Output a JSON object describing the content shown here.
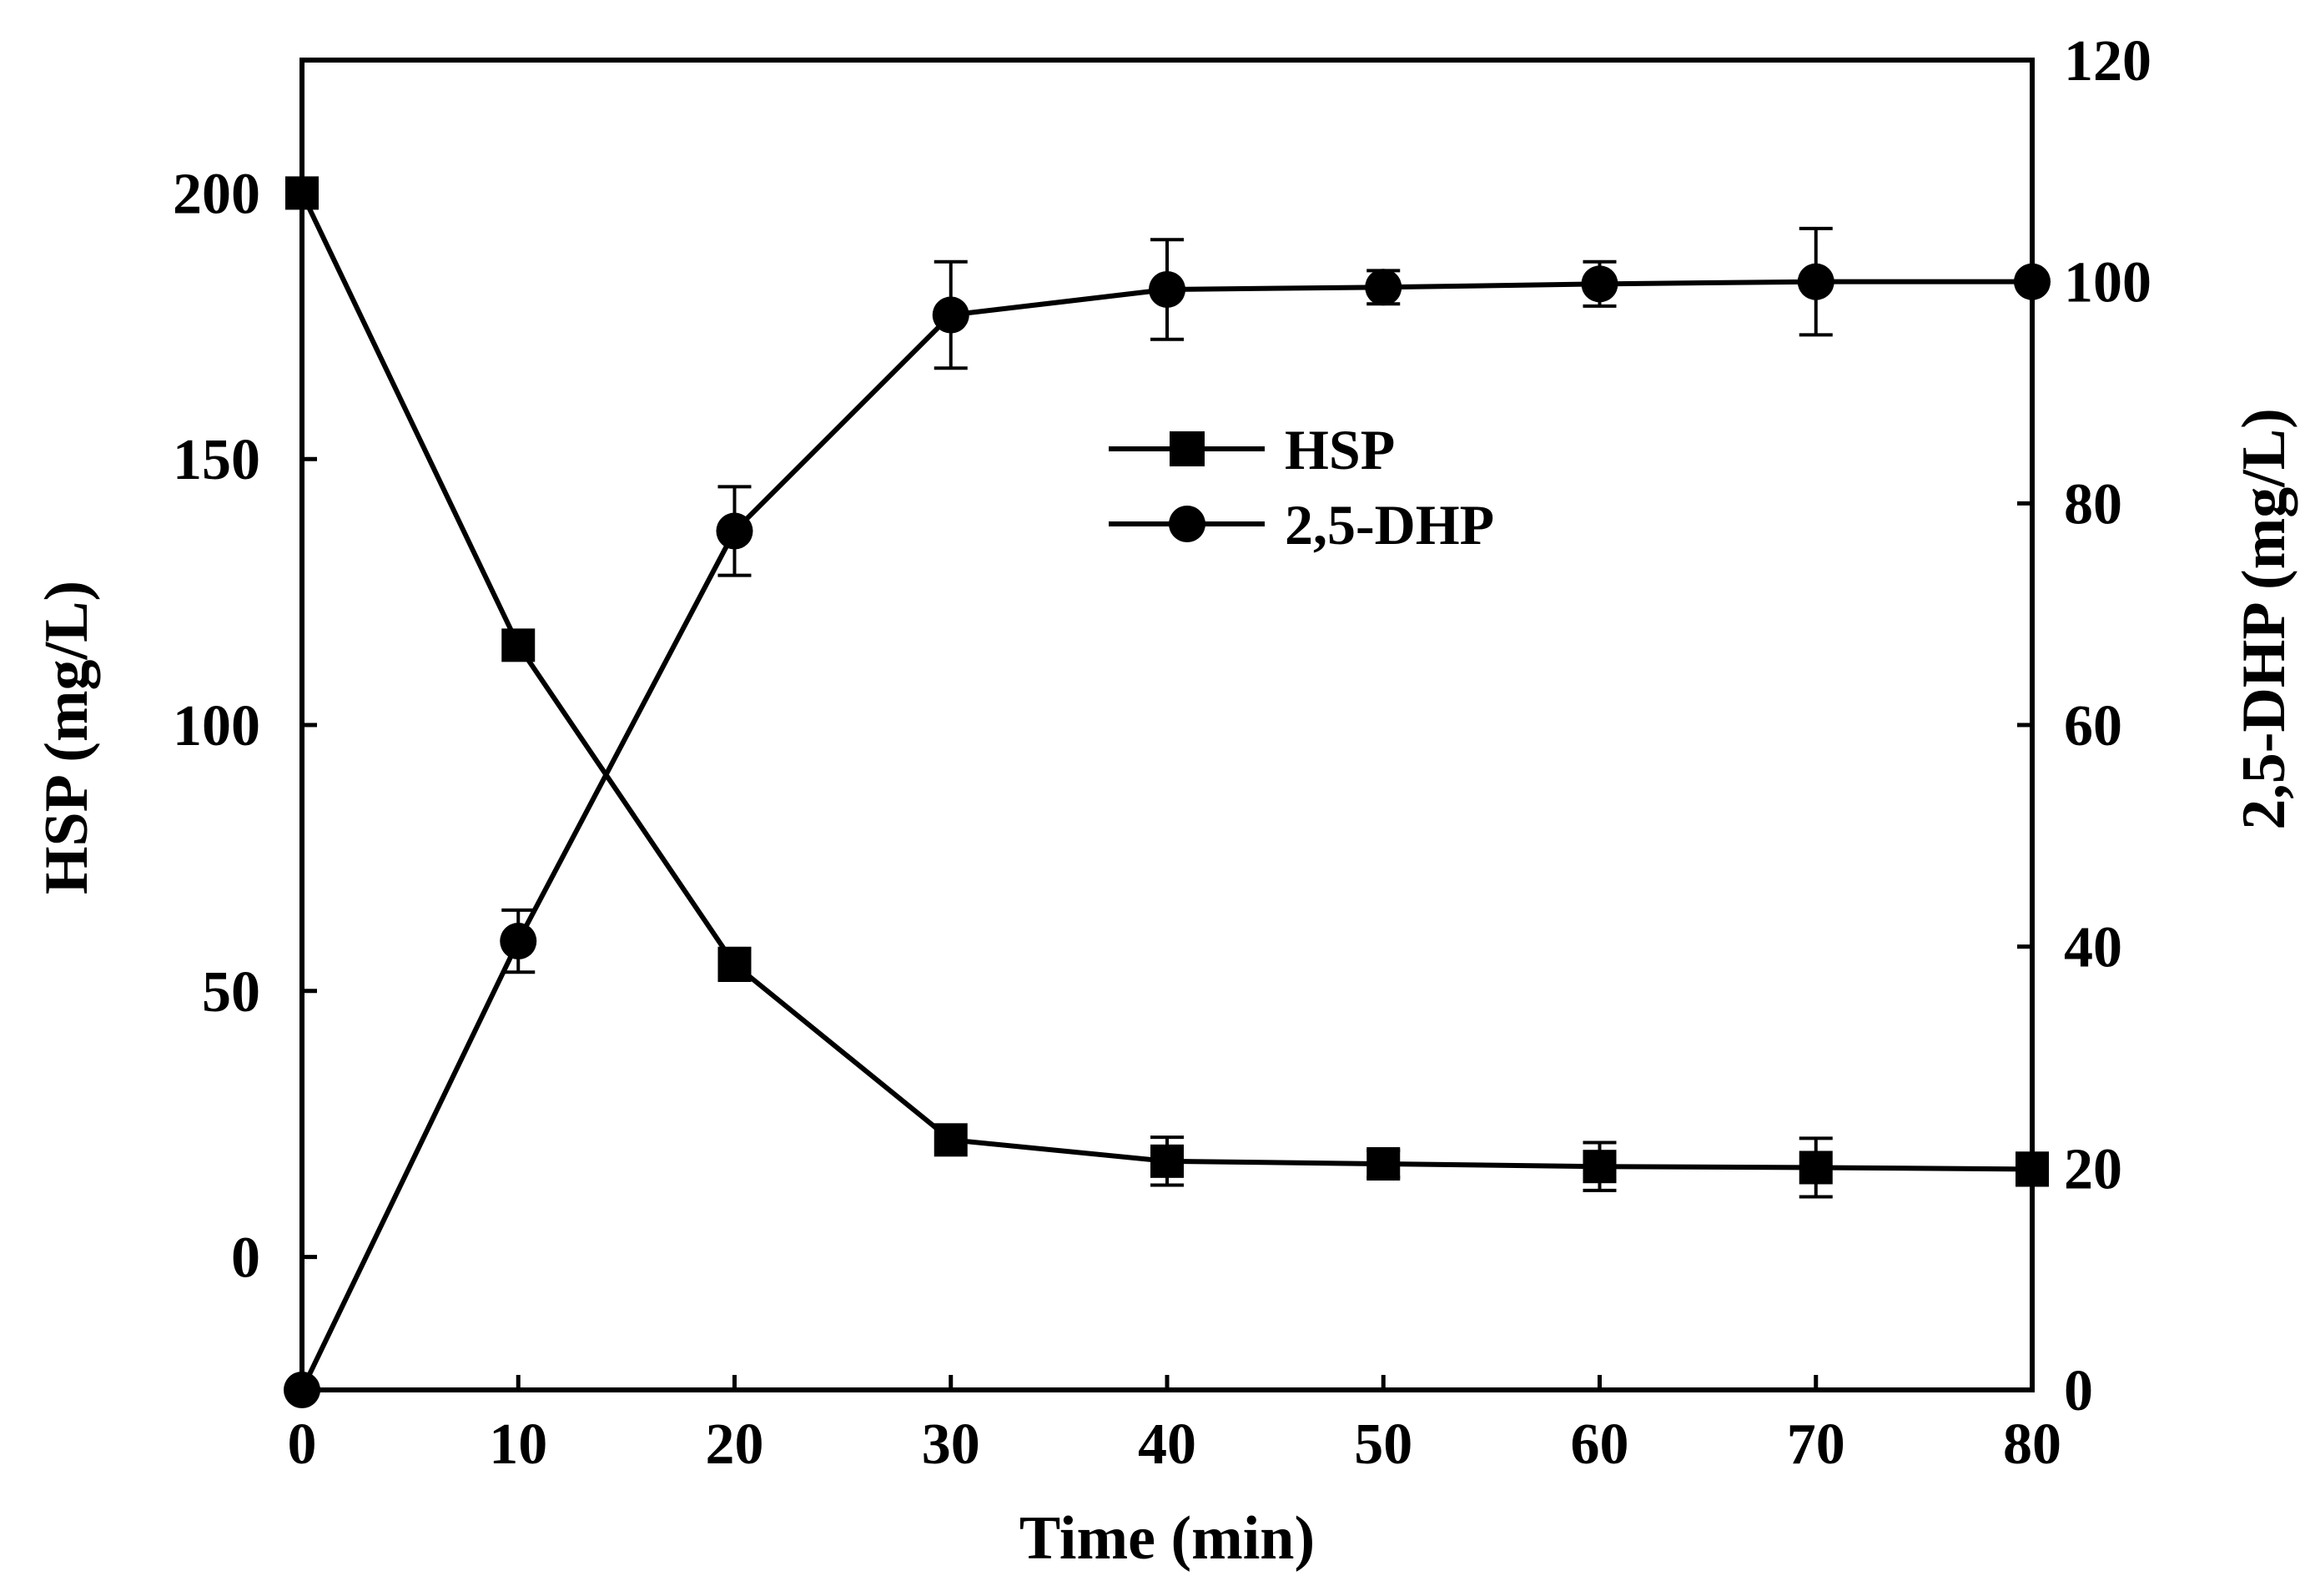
{
  "chart_data": {
    "type": "line",
    "title": "",
    "xlabel": "Time (min)",
    "ylabel_left": "HSP (mg/L)",
    "ylabel_right": "2,5-DHP (mg/L)",
    "xlim": [
      0,
      80
    ],
    "ylim_left": [
      -25,
      225
    ],
    "ylim_right": [
      0,
      120
    ],
    "x_ticks": [
      "0",
      "10",
      "20",
      "30",
      "40",
      "50",
      "60",
      "70",
      "80"
    ],
    "y_left_ticks": [
      "0",
      "50",
      "100",
      "150",
      "200"
    ],
    "y_right_ticks": [
      "0",
      "20",
      "40",
      "60",
      "80",
      "100",
      "120"
    ],
    "grid": false,
    "legend_position": "upper-center",
    "x": [
      0,
      10,
      20,
      30,
      40,
      50,
      60,
      70,
      80
    ],
    "series": [
      {
        "name": "HSP",
        "axis": "left",
        "marker": "square",
        "values": [
          200,
          115,
          55,
          22,
          18,
          17.5,
          17,
          16.8,
          16.5
        ],
        "errors": [
          0,
          0,
          3,
          0,
          4.5,
          2.5,
          4.5,
          5.5,
          3
        ]
      },
      {
        "name": "2,5-DHP",
        "axis": "right",
        "marker": "circle",
        "values": [
          0,
          40.5,
          77.5,
          97,
          99.3,
          99.5,
          99.8,
          100,
          100
        ],
        "errors": [
          0,
          2.8,
          4,
          4.8,
          4.5,
          1.5,
          2,
          4.8,
          0
        ]
      }
    ],
    "colors": {
      "line": "#000000",
      "background": "#ffffff"
    }
  }
}
